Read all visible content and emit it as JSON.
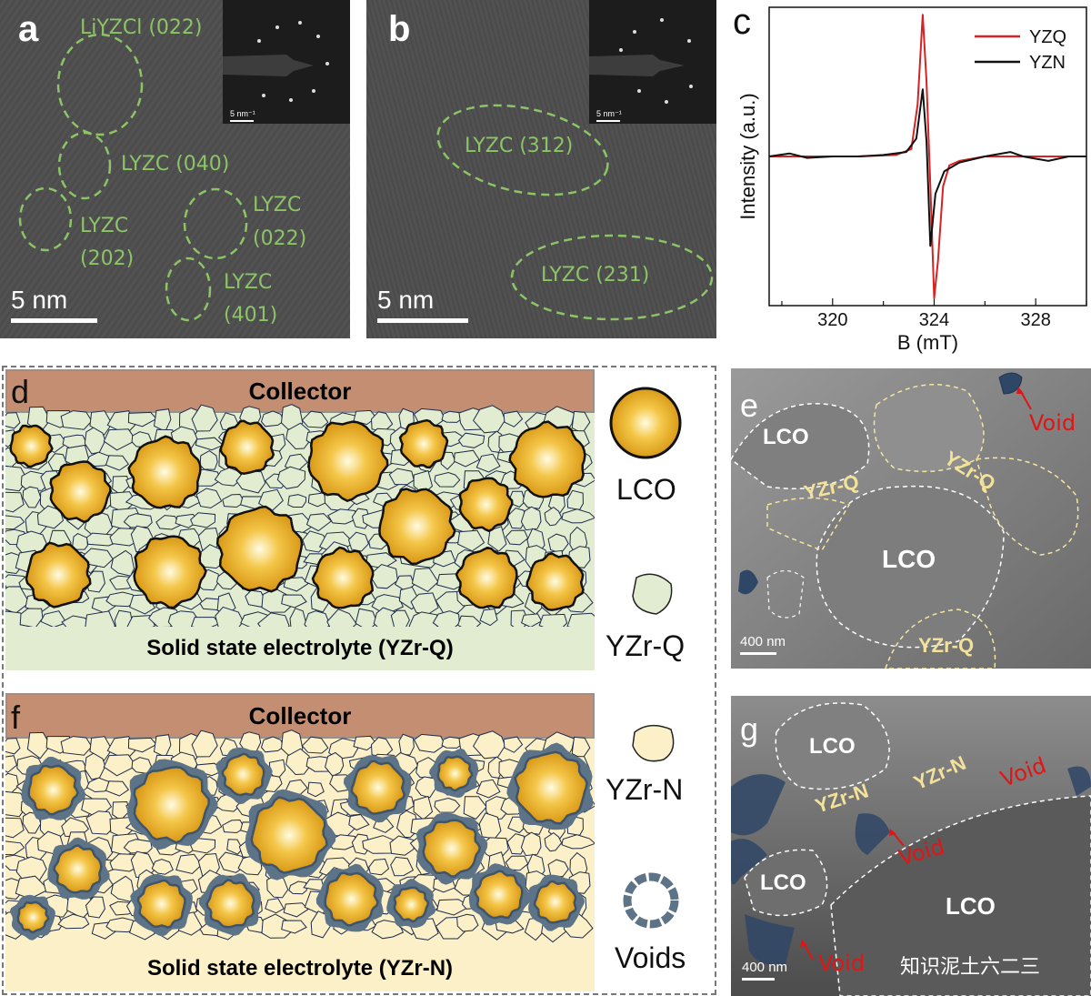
{
  "panels": {
    "a": {
      "letter": "a",
      "labels": [
        "LiYZCl (022)",
        "LYZC (040)",
        "LYZC",
        "(202)",
        "LYZC",
        "(022)",
        "LYZC",
        "(401)"
      ],
      "scale": "5 nm",
      "inset_scale": "5 nm⁻¹"
    },
    "b": {
      "letter": "b",
      "labels": [
        "LYZC (312)",
        "LYZC (231)"
      ],
      "scale": "5 nm",
      "inset_scale": "5 nm⁻¹"
    },
    "c": {
      "letter": "c"
    },
    "d": {
      "letter": "d",
      "collector": "Collector",
      "electrolyte": "Solid state electrolyte (YZr-Q)"
    },
    "f": {
      "letter": "f",
      "collector": "Collector",
      "electrolyte": "Solid state electrolyte (YZr-N)"
    },
    "legend": {
      "lco": "LCO",
      "yzrq": "YZr-Q",
      "yzrn": "YZr-N",
      "voids": "Voids"
    },
    "e": {
      "letter": "e",
      "lco": [
        "LCO",
        "LCO"
      ],
      "yzr": [
        "YZr-Q",
        "YZr-Q",
        "YZr-Q"
      ],
      "void": "Void",
      "scale": "400 nm"
    },
    "g": {
      "letter": "g",
      "lco": [
        "LCO",
        "LCO",
        "LCO"
      ],
      "yzr": [
        "YZr-N",
        "YZr-N"
      ],
      "voids": [
        "Void",
        "Void",
        "Void"
      ],
      "scale": "400 nm",
      "watermark": "知识泥土六二三"
    }
  },
  "colors": {
    "yzq": "#d62222",
    "yzn": "#111111",
    "green_label": "#8cc466",
    "collector": "#c48e73",
    "yzrq_fill": "#e2ecd1",
    "yzrn_fill": "#fcf0c8",
    "void": "#5d7387"
  },
  "chart_data": {
    "type": "line",
    "xlabel": "B (mT)",
    "ylabel": "Intensity (a.u.)",
    "xlim": [
      317.5,
      330
    ],
    "ylim": [
      -1.0,
      1.0
    ],
    "xticks": [
      320,
      324,
      328
    ],
    "legend_position": "top-right",
    "series": [
      {
        "name": "YZQ",
        "color": "#d62222",
        "points": [
          [
            317.5,
            0.0
          ],
          [
            319,
            0.0
          ],
          [
            321,
            0.0
          ],
          [
            322.5,
            0.01
          ],
          [
            323.1,
            0.05
          ],
          [
            323.35,
            0.35
          ],
          [
            323.55,
            0.95
          ],
          [
            323.7,
            0.5
          ],
          [
            323.85,
            -0.2
          ],
          [
            324.0,
            -0.95
          ],
          [
            324.15,
            -0.7
          ],
          [
            324.35,
            -0.2
          ],
          [
            324.6,
            -0.06
          ],
          [
            325,
            -0.03
          ],
          [
            326,
            0.0
          ],
          [
            327,
            0.0
          ],
          [
            328,
            0.0
          ],
          [
            330,
            0.0
          ]
        ]
      },
      {
        "name": "YZN",
        "color": "#111111",
        "points": [
          [
            317.5,
            0.0
          ],
          [
            318.3,
            0.02
          ],
          [
            319,
            -0.01
          ],
          [
            320,
            0.0
          ],
          [
            321,
            0.0
          ],
          [
            322,
            0.01
          ],
          [
            322.9,
            0.03
          ],
          [
            323.3,
            0.12
          ],
          [
            323.55,
            0.45
          ],
          [
            323.7,
            0.1
          ],
          [
            323.85,
            -0.6
          ],
          [
            324.05,
            -0.25
          ],
          [
            324.4,
            -0.1
          ],
          [
            325,
            -0.04
          ],
          [
            326,
            0.0
          ],
          [
            327.0,
            0.03
          ],
          [
            327.5,
            0.0
          ],
          [
            328.5,
            -0.03
          ],
          [
            329.3,
            0.0
          ],
          [
            330,
            0.0
          ]
        ]
      }
    ]
  }
}
